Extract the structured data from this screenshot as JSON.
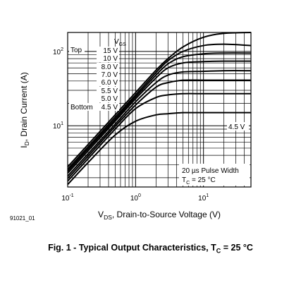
{
  "chart_data": {
    "type": "line",
    "title": "",
    "xlabel": "V_DS, Drain-to-Source Voltage (V)",
    "ylabel": "I_D, Drain Current (A)",
    "x_scale": "log",
    "y_scale": "log",
    "xlim": [
      0.1,
      50
    ],
    "ylim": [
      1.5,
      180
    ],
    "grid": true,
    "x_ticks": [
      {
        "value": 0.1,
        "base": "10",
        "exp": "-1"
      },
      {
        "value": 1,
        "base": "10",
        "exp": "0"
      },
      {
        "value": 10,
        "base": "10",
        "exp": "1"
      }
    ],
    "y_ticks": [
      {
        "value": 10,
        "base": "10",
        "exp": "1"
      },
      {
        "value": 100,
        "base": "10",
        "exp": "2"
      }
    ],
    "legend": {
      "header_main": "V",
      "header_sub": "GS",
      "top_label": "Top",
      "bottom_label": "Bottom",
      "entries": [
        "15 V",
        "10 V",
        "8.0 V",
        "7.0 V",
        "6.0 V",
        "5.5 V",
        "5.0 V",
        "4.5 V"
      ]
    },
    "series_label": "4.5 V",
    "conditions": {
      "line1": "20 µs Pulse Width",
      "line2_main": "T",
      "line2_sub": "C",
      "line2_rest": " = 25 °C"
    },
    "series": [
      {
        "name": "15 V",
        "values": [
          [
            0.1,
            2.8
          ],
          [
            0.2,
            5.6
          ],
          [
            0.5,
            14
          ],
          [
            1,
            28
          ],
          [
            2,
            56
          ],
          [
            3,
            80
          ],
          [
            5,
            115
          ],
          [
            10,
            155
          ],
          [
            20,
            175
          ],
          [
            50,
            180
          ]
        ]
      },
      {
        "name": "10 V",
        "values": [
          [
            0.1,
            2.6
          ],
          [
            0.2,
            5.2
          ],
          [
            0.5,
            13
          ],
          [
            1,
            26
          ],
          [
            2,
            52
          ],
          [
            3,
            75
          ],
          [
            5,
            100
          ],
          [
            10,
            120
          ],
          [
            20,
            125
          ],
          [
            50,
            120
          ]
        ]
      },
      {
        "name": "8.0 V",
        "values": [
          [
            0.1,
            2.45
          ],
          [
            0.2,
            4.9
          ],
          [
            0.5,
            12.2
          ],
          [
            1,
            24.5
          ],
          [
            2,
            48
          ],
          [
            3,
            68
          ],
          [
            5,
            85
          ],
          [
            10,
            93
          ],
          [
            20,
            95
          ],
          [
            50,
            95
          ]
        ]
      },
      {
        "name": "7.0 V",
        "values": [
          [
            0.1,
            2.3
          ],
          [
            0.2,
            4.6
          ],
          [
            0.5,
            11.5
          ],
          [
            1,
            23
          ],
          [
            2,
            44
          ],
          [
            3,
            60
          ],
          [
            5,
            70
          ],
          [
            10,
            73
          ],
          [
            20,
            74
          ],
          [
            50,
            74
          ]
        ]
      },
      {
        "name": "6.0 V",
        "values": [
          [
            0.1,
            2.1
          ],
          [
            0.2,
            4.2
          ],
          [
            0.5,
            10.5
          ],
          [
            1,
            21
          ],
          [
            2,
            38
          ],
          [
            3,
            48
          ],
          [
            5,
            53
          ],
          [
            10,
            54
          ],
          [
            20,
            55
          ],
          [
            50,
            55
          ]
        ]
      },
      {
        "name": "5.5 V",
        "values": [
          [
            0.1,
            1.95
          ],
          [
            0.2,
            3.9
          ],
          [
            0.5,
            9.8
          ],
          [
            1,
            19
          ],
          [
            2,
            33
          ],
          [
            3,
            38
          ],
          [
            5,
            41
          ],
          [
            10,
            41
          ],
          [
            20,
            41
          ],
          [
            50,
            41
          ]
        ]
      },
      {
        "name": "5.0 V",
        "values": [
          [
            0.1,
            1.8
          ],
          [
            0.2,
            3.6
          ],
          [
            0.5,
            9
          ],
          [
            1,
            17
          ],
          [
            2,
            24
          ],
          [
            3,
            26
          ],
          [
            5,
            27
          ],
          [
            10,
            27
          ],
          [
            20,
            27
          ],
          [
            50,
            27
          ]
        ]
      },
      {
        "name": "4.5 V",
        "values": [
          [
            0.1,
            1.62
          ],
          [
            0.2,
            3.2
          ],
          [
            0.5,
            7.5
          ],
          [
            1,
            11.5
          ],
          [
            2,
            14
          ],
          [
            3,
            14.5
          ],
          [
            5,
            15
          ],
          [
            10,
            15
          ],
          [
            20,
            15
          ],
          [
            50,
            15
          ]
        ]
      }
    ]
  },
  "figure_id": "91021_01",
  "caption": {
    "main": "Fig. 1 - Typical Output Characteristics, T",
    "sub": "C",
    "rest": " = 25 °C"
  }
}
